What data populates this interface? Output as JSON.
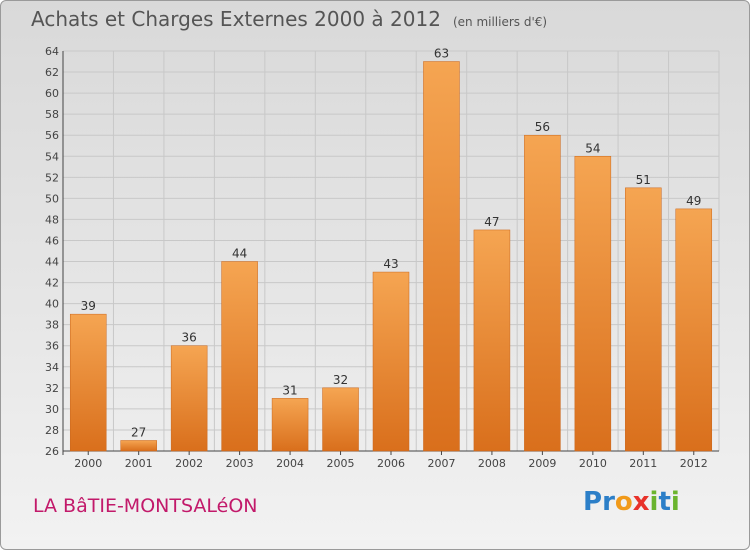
{
  "header": {
    "title": "Achats et Charges Externes 2000 à 2012",
    "subtitle": "(en milliers d'€)"
  },
  "footer": {
    "location": "LA BâTIE-MONTSALéON",
    "logo_letters": [
      {
        "ch": "P",
        "color": "#2c7fc8"
      },
      {
        "ch": "r",
        "color": "#2c7fc8"
      },
      {
        "ch": "o",
        "color": "#f19a1a"
      },
      {
        "ch": "x",
        "color": "#e8322a"
      },
      {
        "ch": "i",
        "color": "#6bb42e"
      },
      {
        "ch": "t",
        "color": "#2c7fc8"
      },
      {
        "ch": "i",
        "color": "#6bb42e"
      }
    ]
  },
  "chart_data": {
    "type": "bar",
    "title": "Achats et Charges Externes 2000 à 2012",
    "subtitle": "(en milliers d'€)",
    "categories": [
      "2000",
      "2001",
      "2002",
      "2003",
      "2004",
      "2005",
      "2006",
      "2007",
      "2008",
      "2009",
      "2010",
      "2011",
      "2012"
    ],
    "values": [
      39,
      27,
      36,
      44,
      31,
      32,
      43,
      63,
      47,
      56,
      54,
      51,
      49
    ],
    "ylim": [
      26,
      64
    ],
    "yticks": [
      26,
      28,
      30,
      32,
      34,
      36,
      38,
      40,
      42,
      44,
      46,
      48,
      50,
      52,
      54,
      56,
      58,
      60,
      62,
      64
    ],
    "grid": true,
    "bar_color": "#e8842f",
    "xlabel": "",
    "ylabel": ""
  }
}
